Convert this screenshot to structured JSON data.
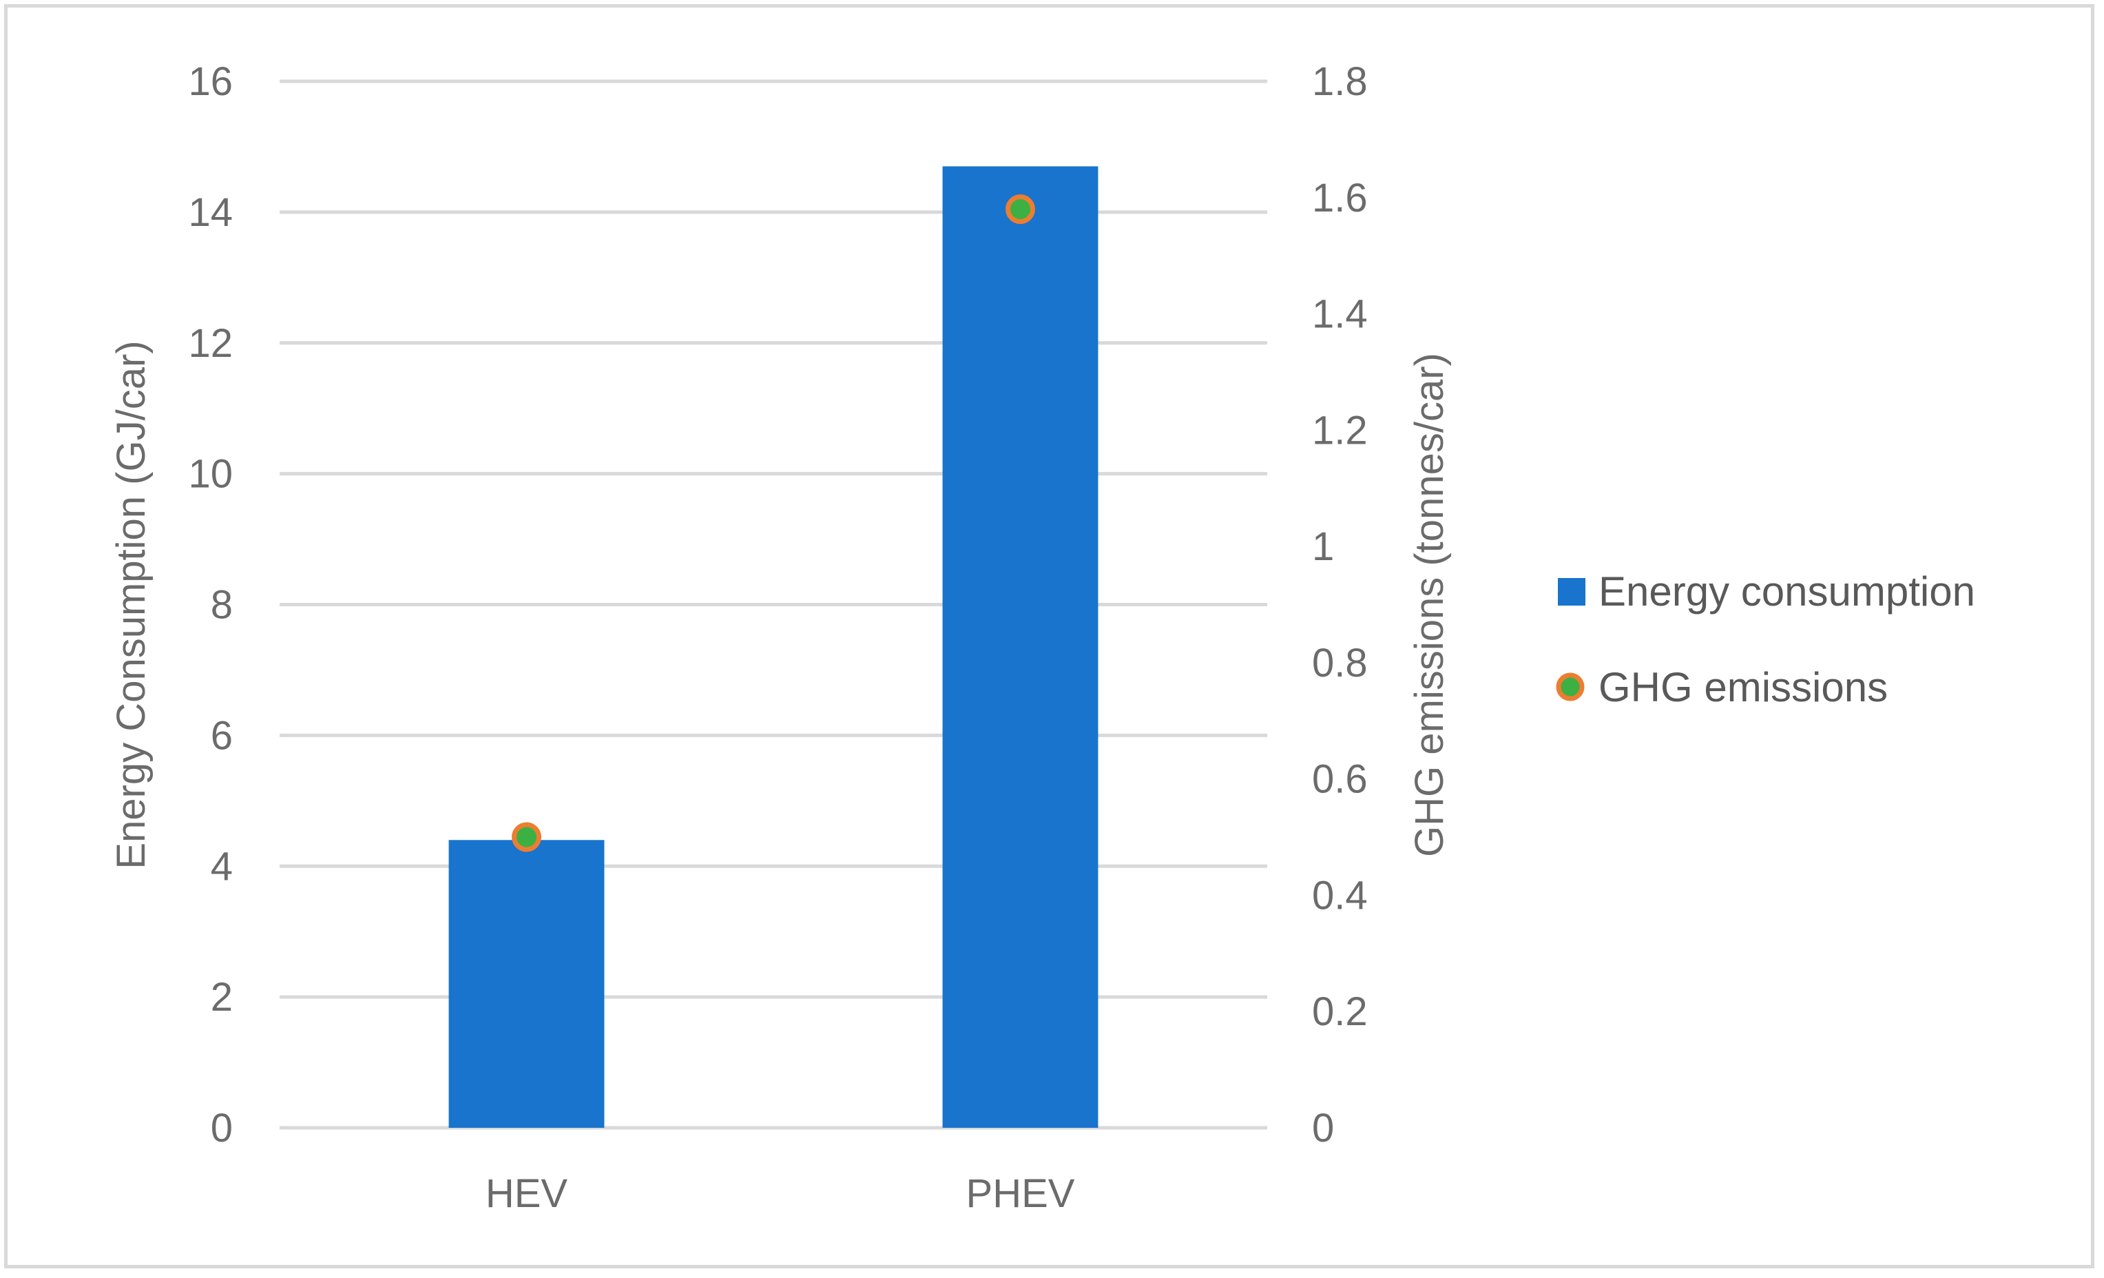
{
  "chart_data": {
    "type": "bar",
    "title": "",
    "categories": [
      "HEV",
      "PHEV"
    ],
    "series": [
      {
        "name": "Energy consumption",
        "kind": "bar",
        "axis": "left",
        "color": "#1874cd",
        "values": [
          4.4,
          14.7
        ]
      },
      {
        "name": "GHG emissions",
        "kind": "marker",
        "axis": "right",
        "color": "#3cb043",
        "edge_color": "#ed7d31",
        "values": [
          0.5,
          1.58
        ]
      }
    ],
    "left_axis": {
      "label": "Energy Consumption (GJ/car)",
      "range": [
        0,
        16
      ],
      "ticks": [
        "0",
        "2",
        "4",
        "6",
        "8",
        "10",
        "12",
        "14",
        "16"
      ]
    },
    "right_axis": {
      "label": "GHG emissions (tonnes/car)",
      "range": [
        0,
        1.8
      ],
      "ticks": [
        "0",
        "0.2",
        "0.4",
        "0.6",
        "0.8",
        "1",
        "1.2",
        "1.4",
        "1.6",
        "1.8"
      ]
    },
    "grid": true,
    "legend_position": "right"
  }
}
